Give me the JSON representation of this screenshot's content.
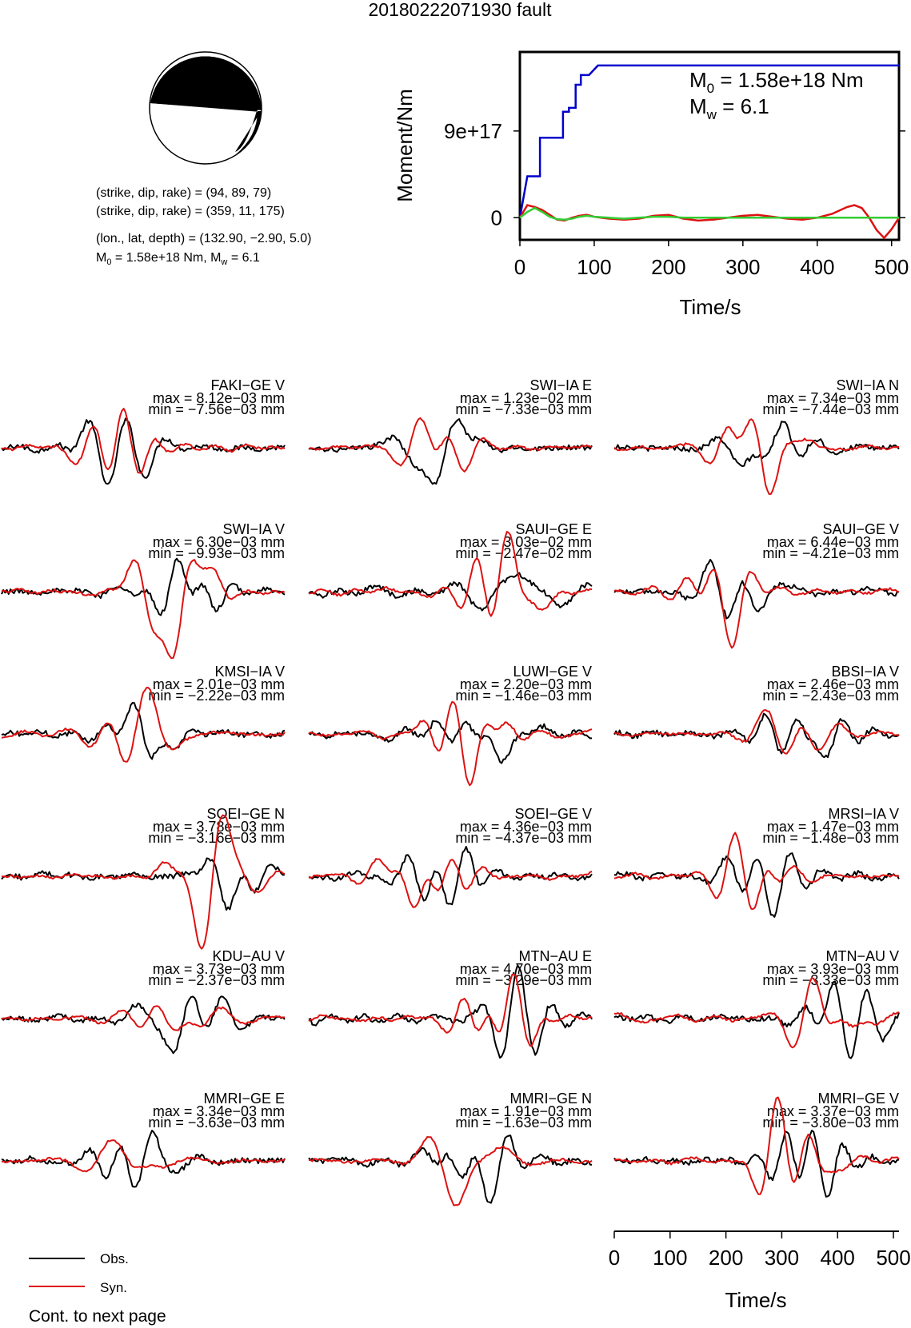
{
  "title": "20180222071930 fault",
  "mechanism": {
    "line1": "(strike, dip, rake) = (94, 89, 79)",
    "line2": "(strike, dip, rake) = (359, 11, 175)",
    "line3": "(lon., lat, depth) = (132.90, −2.90, 5.0)",
    "line4_a": "M",
    "line4_sub": "0",
    "line4_b": " = 1.58e+18 Nm, M",
    "line4_sub2": "w",
    "line4_c": " = 6.1"
  },
  "legend": {
    "obs": "Obs.",
    "syn": "Syn.",
    "obs_color": "#000000",
    "syn_color": "#dd1111"
  },
  "continued": "Cont. to next page",
  "chart_data": [
    {
      "type": "line",
      "id": "moment-rate",
      "xlabel": "Time/s",
      "ylabel": "Moment/Nm",
      "xlim": [
        0,
        510
      ],
      "xticks": [
        "0",
        "100",
        "200",
        "300",
        "400",
        "500"
      ],
      "ytick_labels": [
        "0",
        "9e+17"
      ],
      "ytick_values": [
        0,
        9e+17
      ],
      "ylim": [
        -2.3e+17,
        1.72e+18
      ],
      "annotation": {
        "m0_a": "M",
        "m0_sub": "0",
        "m0_b": " = 1.58e+18 Nm",
        "mw_a": "M",
        "mw_sub": "w",
        "mw_b": " = 6.1"
      },
      "series": [
        {
          "color": "#0000cc",
          "x": [
            0,
            10,
            10,
            27,
            27,
            41,
            41,
            58,
            58,
            66,
            66,
            75,
            75,
            82,
            82,
            93,
            93,
            105,
            105,
            510
          ],
          "y": [
            0,
            4.3e+17,
            4.3e+17,
            4.3e+17,
            8.3e+17,
            8.3e+17,
            8.3e+17,
            8.3e+17,
            1.1e+18,
            1.1e+18,
            1.14e+18,
            1.14e+18,
            1.38e+18,
            1.38e+18,
            1.48e+18,
            1.48e+18,
            1.48e+18,
            1.58e+18,
            1.58e+18,
            1.58e+18
          ]
        },
        {
          "color": "#dd1111",
          "x": [
            0,
            10,
            20,
            30,
            40,
            50,
            60,
            70,
            80,
            90,
            100,
            120,
            140,
            160,
            180,
            200,
            220,
            240,
            260,
            280,
            300,
            320,
            340,
            360,
            380,
            400,
            420,
            440,
            450,
            460,
            470,
            480,
            490,
            500,
            510
          ],
          "y": [
            0,
            1.3e+17,
            1.1e+17,
            8e+16,
            3e+16,
            -2e+16,
            -3e+16,
            0,
            2e+16,
            3e+16,
            1e+16,
            -1e+16,
            -2e+16,
            -1e+16,
            2e+16,
            3e+16,
            -1e+16,
            -3e+16,
            -2e+16,
            0,
            2e+16,
            3e+16,
            1e+16,
            -1e+16,
            -2e+16,
            0,
            4e+16,
            1.1e+17,
            1.3e+17,
            1e+17,
            0,
            -1.3e+17,
            -2.1e+17,
            -1.2e+17,
            0
          ]
        },
        {
          "color": "#33cc33",
          "x": [
            0,
            10,
            20,
            30,
            40,
            50,
            60,
            70,
            80,
            90,
            100,
            120,
            140,
            160,
            180,
            200,
            220,
            240,
            260,
            300,
            350,
            400,
            450,
            510
          ],
          "y": [
            0,
            6e+16,
            1e+17,
            6e+16,
            1e+16,
            -1.5e+16,
            -2e+16,
            -1e+16,
            1e+16,
            2e+16,
            1e+16,
            0,
            -1e+16,
            0,
            1e+16,
            1e+16,
            0,
            0,
            0,
            0,
            0,
            0,
            0,
            0
          ]
        }
      ]
    },
    {
      "type": "line",
      "id": "waveforms",
      "xlabel": "Time/s",
      "xlim": [
        0,
        510
      ],
      "xticks": [
        "0",
        "100",
        "200",
        "300",
        "400",
        "500"
      ],
      "stations": [
        {
          "label": "FAKI−GE V",
          "max": "max = 8.12e−03 mm",
          "min": "min = −7.56e−03 mm"
        },
        {
          "label": "SWI−IA E",
          "max": "max = 1.23e−02 mm",
          "min": "min = −7.33e−03 mm"
        },
        {
          "label": "SWI−IA N",
          "max": "max = 7.34e−03 mm",
          "min": "min = −7.44e−03 mm"
        },
        {
          "label": "SWI−IA V",
          "max": "max = 6.30e−03 mm",
          "min": "min = −9.93e−03 mm"
        },
        {
          "label": "SAUI−GE E",
          "max": "max = 3.03e−02 mm",
          "min": "min = −2.47e−02 mm"
        },
        {
          "label": "SAUI−GE V",
          "max": "max = 6.44e−03 mm",
          "min": "min = −4.21e−03 mm"
        },
        {
          "label": "KMSI−IA V",
          "max": "max = 2.01e−03 mm",
          "min": "min = −2.22e−03 mm"
        },
        {
          "label": "LUWI−GE V",
          "max": "max = 2.20e−03 mm",
          "min": "min = −1.46e−03 mm"
        },
        {
          "label": "BBSI−IA V",
          "max": "max = 2.46e−03 mm",
          "min": "min = −2.43e−03 mm"
        },
        {
          "label": "SOEI−GE N",
          "max": "max = 3.78e−03 mm",
          "min": "min = −3.16e−03 mm"
        },
        {
          "label": "SOEI−GE V",
          "max": "max = 4.36e−03 mm",
          "min": "min = −4.37e−03 mm"
        },
        {
          "label": "MRSI−IA V",
          "max": "max = 1.47e−03 mm",
          "min": "min = −1.48e−03 mm"
        },
        {
          "label": "KDU−AU V",
          "max": "max = 3.73e−03 mm",
          "min": "min = −2.37e−03 mm"
        },
        {
          "label": "MTN−AU E",
          "max": "max = 4.70e−03 mm",
          "min": "min = −3.29e−03 mm"
        },
        {
          "label": "MTN−AU V",
          "max": "max = 3.93e−03 mm",
          "min": "min = −3.33e−03 mm"
        },
        {
          "label": "MMRI−GE E",
          "max": "max = 3.34e−03 mm",
          "min": "min = −3.63e−03 mm"
        },
        {
          "label": "MMRI−GE N",
          "max": "max = 1.91e−03 mm",
          "min": "min = −1.63e−03 mm"
        },
        {
          "label": "MMRI−GE V",
          "max": "max = 3.37e−03 mm",
          "min": "min = −3.80e−03 mm"
        }
      ]
    }
  ]
}
